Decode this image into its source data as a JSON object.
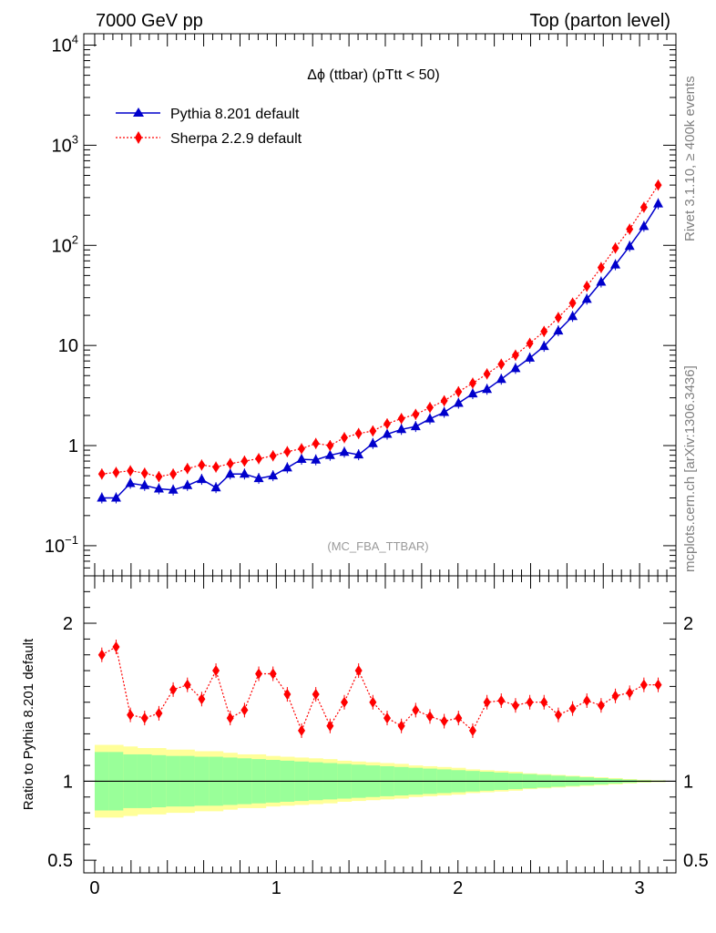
{
  "header": {
    "left": "7000 GeV pp",
    "right": "Top (parton level)"
  },
  "side_labels": {
    "rivet": "Rivet 3.1.10, ≥ 400k events",
    "mcplots": "mcplots.cern.ch [arXiv:1306.3436]"
  },
  "colors": {
    "pythia": "#0000cc",
    "sherpa": "#ff0000",
    "band_inner": "#99ff99",
    "band_outer": "#ffff99"
  },
  "chart_data": [
    {
      "type": "line",
      "title": "Δϕ (ttbar) (pTtt < 50)",
      "watermark": "(MC_FBA_TTBAR)",
      "yscale": "log",
      "ylim": [
        0.05,
        13000
      ],
      "xlim": [
        -0.06,
        3.2
      ],
      "y_ticks": [
        {
          "v": 0.1,
          "base": "10",
          "exp": "−1"
        },
        {
          "v": 1,
          "text": "1"
        },
        {
          "v": 10,
          "text": "10"
        },
        {
          "v": 100,
          "base": "10",
          "exp": "2"
        },
        {
          "v": 1000,
          "base": "10",
          "exp": "3"
        },
        {
          "v": 10000,
          "base": "10",
          "exp": "4"
        }
      ],
      "legend": {
        "position": "top-left"
      },
      "x": [
        0.0393,
        0.1178,
        0.1963,
        0.2749,
        0.3534,
        0.432,
        0.5105,
        0.589,
        0.6676,
        0.7461,
        0.8247,
        0.9032,
        0.9817,
        1.0603,
        1.1388,
        1.2174,
        1.2959,
        1.3744,
        1.453,
        1.5315,
        1.6101,
        1.6886,
        1.7671,
        1.8457,
        1.9242,
        2.0028,
        2.0813,
        2.1598,
        2.2384,
        2.3169,
        2.3955,
        2.474,
        2.5525,
        2.6311,
        2.7096,
        2.7882,
        2.8667,
        2.9452,
        3.0238,
        3.1023
      ],
      "series": [
        {
          "name": "Pythia 8.201 default",
          "marker": "triangle",
          "line": "solid",
          "values": [
            0.3,
            0.3,
            0.42,
            0.4,
            0.37,
            0.36,
            0.4,
            0.46,
            0.38,
            0.52,
            0.52,
            0.47,
            0.5,
            0.6,
            0.73,
            0.72,
            0.8,
            0.86,
            0.81,
            1.05,
            1.3,
            1.45,
            1.55,
            1.85,
            2.15,
            2.65,
            3.3,
            3.65,
            4.6,
            5.9,
            7.5,
            9.8,
            14.0,
            19.5,
            29.0,
            43.0,
            64.0,
            98.0,
            155.0,
            260.0
          ]
        },
        {
          "name": "Sherpa 2.2.9 default",
          "marker": "diamond",
          "line": "dotted",
          "values": [
            0.52,
            0.54,
            0.56,
            0.53,
            0.49,
            0.52,
            0.59,
            0.64,
            0.61,
            0.66,
            0.7,
            0.74,
            0.79,
            0.87,
            0.93,
            1.05,
            1.0,
            1.2,
            1.32,
            1.4,
            1.65,
            1.86,
            2.05,
            2.4,
            2.8,
            3.45,
            4.2,
            5.2,
            6.5,
            8.0,
            10.5,
            13.8,
            19.0,
            26.5,
            39.0,
            60.0,
            94.0,
            145.0,
            240.0,
            400.0
          ]
        }
      ]
    },
    {
      "type": "line",
      "ylabel": "Ratio to Pythia 8.201 default",
      "ylim": [
        0.42,
        2.3
      ],
      "xlim": [
        -0.06,
        3.2
      ],
      "y_ticks": [
        {
          "v": 0.5,
          "text": "0.5"
        },
        {
          "v": 1,
          "text": "1"
        },
        {
          "v": 2,
          "text": "2"
        }
      ],
      "x_ticks": [
        "0",
        "1",
        "2",
        "3"
      ],
      "reference_line": 1,
      "x": [
        0.0393,
        0.1178,
        0.1963,
        0.2749,
        0.3534,
        0.432,
        0.5105,
        0.589,
        0.6676,
        0.7461,
        0.8247,
        0.9032,
        0.9817,
        1.0603,
        1.1388,
        1.2174,
        1.2959,
        1.3744,
        1.453,
        1.5315,
        1.6101,
        1.6886,
        1.7671,
        1.8457,
        1.9242,
        2.0028,
        2.0813,
        2.1598,
        2.2384,
        2.3169,
        2.3955,
        2.474,
        2.5525,
        2.6311,
        2.7096,
        2.7882,
        2.8667,
        2.9452,
        3.0238,
        3.1023
      ],
      "series": [
        {
          "name": "Sherpa 2.2.9 default",
          "values": [
            1.8,
            1.85,
            1.42,
            1.4,
            1.43,
            1.58,
            1.61,
            1.52,
            1.7,
            1.4,
            1.45,
            1.68,
            1.68,
            1.55,
            1.32,
            1.55,
            1.35,
            1.5,
            1.7,
            1.5,
            1.4,
            1.35,
            1.45,
            1.41,
            1.38,
            1.4,
            1.32,
            1.5,
            1.51,
            1.48,
            1.5,
            1.5,
            1.42,
            1.46,
            1.51,
            1.48,
            1.54,
            1.56,
            1.61,
            1.61
          ]
        }
      ],
      "band_inner": [
        0.185,
        0.185,
        0.17,
        0.17,
        0.165,
        0.16,
        0.16,
        0.155,
        0.155,
        0.15,
        0.145,
        0.14,
        0.135,
        0.13,
        0.125,
        0.12,
        0.115,
        0.11,
        0.105,
        0.1,
        0.095,
        0.09,
        0.085,
        0.08,
        0.075,
        0.07,
        0.065,
        0.06,
        0.055,
        0.05,
        0.045,
        0.04,
        0.035,
        0.03,
        0.025,
        0.02,
        0.015,
        0.01,
        0.006,
        0.004
      ],
      "band_outer": [
        0.23,
        0.23,
        0.22,
        0.21,
        0.21,
        0.2,
        0.2,
        0.19,
        0.19,
        0.18,
        0.17,
        0.17,
        0.16,
        0.155,
        0.15,
        0.145,
        0.14,
        0.13,
        0.125,
        0.12,
        0.115,
        0.11,
        0.1,
        0.095,
        0.09,
        0.085,
        0.075,
        0.07,
        0.065,
        0.06,
        0.05,
        0.045,
        0.04,
        0.035,
        0.03,
        0.025,
        0.02,
        0.014,
        0.009,
        0.006
      ]
    }
  ]
}
